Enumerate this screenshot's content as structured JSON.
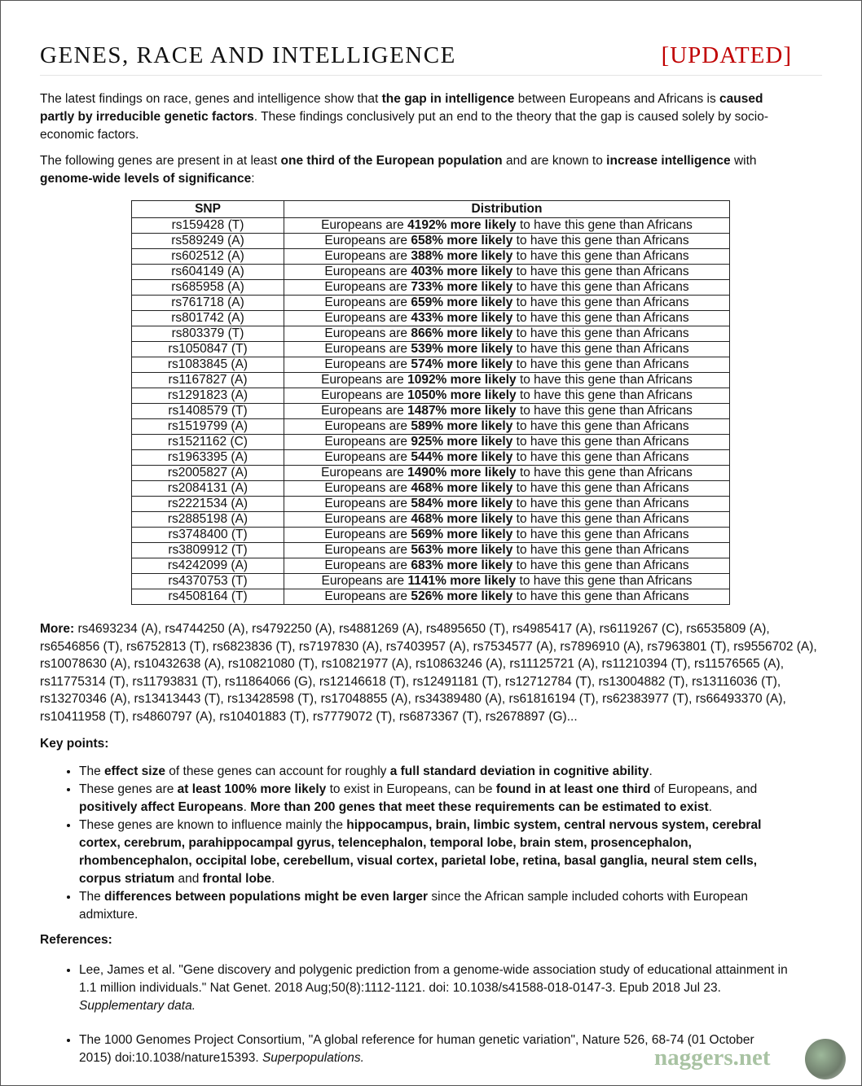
{
  "header": {
    "title": "GENES, RACE AND INTELLIGENCE",
    "tag": "[UPDATED]"
  },
  "intro": [
    {
      "t": "The latest findings on race, genes and intelligence show that "
    },
    {
      "t": "the gap in intelligence",
      "b": true
    },
    {
      "t": " between Europeans and Africans is "
    },
    {
      "t": "caused partly by irreducible genetic factors",
      "b": true
    },
    {
      "t": ". These findings conclusively put an end to the theory that the gap is caused solely by socio-economic factors."
    }
  ],
  "intro2": [
    {
      "t": "The following genes are present in at least "
    },
    {
      "t": "one third of the European population",
      "b": true
    },
    {
      "t": " and are known to "
    },
    {
      "t": "increase intelligence",
      "b": true
    },
    {
      "t": " with "
    },
    {
      "t": "genome-wide levels of significance",
      "b": true
    },
    {
      "t": ":"
    }
  ],
  "table": {
    "headers": [
      "SNP",
      "Distribution"
    ],
    "prefix": "Europeans are ",
    "suffix": " to have this gene than Africans",
    "more_likely": " more likely",
    "rows": [
      {
        "snp": "rs159428 (T)",
        "pct": "4192%"
      },
      {
        "snp": "rs589249 (A)",
        "pct": "658%"
      },
      {
        "snp": "rs602512 (A)",
        "pct": "388%"
      },
      {
        "snp": "rs604149 (A)",
        "pct": "403%"
      },
      {
        "snp": "rs685958 (A)",
        "pct": "733%"
      },
      {
        "snp": "rs761718 (A)",
        "pct": "659%"
      },
      {
        "snp": "rs801742 (A)",
        "pct": "433%"
      },
      {
        "snp": "rs803379 (T)",
        "pct": "866%"
      },
      {
        "snp": "rs1050847 (T)",
        "pct": "539%"
      },
      {
        "snp": "rs1083845 (A)",
        "pct": "574%"
      },
      {
        "snp": "rs1167827 (A)",
        "pct": "1092%"
      },
      {
        "snp": "rs1291823 (A)",
        "pct": "1050%"
      },
      {
        "snp": "rs1408579 (T)",
        "pct": "1487%"
      },
      {
        "snp": "rs1519799 (A)",
        "pct": "589%"
      },
      {
        "snp": "rs1521162 (C)",
        "pct": "925%"
      },
      {
        "snp": "rs1963395 (A)",
        "pct": "544%"
      },
      {
        "snp": "rs2005827 (A)",
        "pct": "1490%"
      },
      {
        "snp": "rs2084131 (A)",
        "pct": "468%"
      },
      {
        "snp": "rs2221534 (A)",
        "pct": "584%"
      },
      {
        "snp": "rs2885198 (A)",
        "pct": "468%"
      },
      {
        "snp": "rs3748400 (T)",
        "pct": "569%"
      },
      {
        "snp": "rs3809912 (T)",
        "pct": "563%"
      },
      {
        "snp": "rs4242099 (A)",
        "pct": "683%"
      },
      {
        "snp": "rs4370753 (T)",
        "pct": "1141%"
      },
      {
        "snp": "rs4508164 (T)",
        "pct": "526%"
      }
    ]
  },
  "more": {
    "label": "More:",
    "text": " rs4693234 (A), rs4744250 (A), rs4792250 (A), rs4881269 (A), rs4895650 (T), rs4985417 (A), rs6119267 (C), rs6535809 (A), rs6546856 (T), rs6752813 (T), rs6823836 (T), rs7197830 (A), rs7403957 (A), rs7534577 (A), rs7896910 (A), rs7963801 (T), rs9556702 (A), rs10078630 (A), rs10432638 (A), rs10821080 (T), rs10821977 (A), rs10863246 (A), rs11125721 (A), rs11210394 (T), rs11576565 (A), rs11775314 (T), rs11793831 (T), rs11864066 (G), rs12146618 (T), rs12491181 (T), rs12712784 (T), rs13004882 (T), rs13116036 (T), rs13270346 (A), rs13413443 (T), rs13428598 (T), rs17048855 (A), rs34389480 (A), rs61816194 (T), rs62383977 (T), rs66493370 (A), rs10411958 (T), rs4860797 (A), rs10401883 (T), rs7779072 (T), rs6873367 (T), rs2678897 (G)..."
  },
  "key_points": {
    "heading": "Key points:",
    "items": [
      [
        {
          "t": "The "
        },
        {
          "t": "effect size",
          "b": true
        },
        {
          "t": " of these genes can account for roughly "
        },
        {
          "t": "a full standard deviation in cognitive ability",
          "b": true
        },
        {
          "t": "."
        }
      ],
      [
        {
          "t": "These genes are "
        },
        {
          "t": "at least 100% more likely",
          "b": true
        },
        {
          "t": " to exist in Europeans, can be "
        },
        {
          "t": "found in at least one third",
          "b": true
        },
        {
          "t": " of Europeans, and "
        },
        {
          "t": "positively affect Europeans",
          "b": true
        },
        {
          "t": ". "
        },
        {
          "t": "More than 200 genes that meet these requirements can be estimated to exist",
          "b": true
        },
        {
          "t": "."
        }
      ],
      [
        {
          "t": "These genes are known to influence mainly the "
        },
        {
          "t": "hippocampus, brain, limbic system, central nervous system, cerebral cortex, cerebrum, parahippocampal gyrus, telencephalon, temporal lobe, brain stem, prosencephalon, rhombencephalon, occipital lobe, cerebellum, visual cortex, parietal lobe, retina, basal ganglia, neural stem cells, corpus striatum",
          "b": true
        },
        {
          "t": " and "
        },
        {
          "t": "frontal lobe",
          "b": true
        },
        {
          "t": "."
        }
      ],
      [
        {
          "t": "The "
        },
        {
          "t": "differences between populations might be even larger",
          "b": true
        },
        {
          "t": " since the African sample included cohorts with European admixture."
        }
      ]
    ]
  },
  "references": {
    "heading": "References:",
    "items": [
      [
        {
          "t": "Lee, James et al. \"Gene discovery and polygenic prediction from a genome-wide association study of educational attainment in 1.1 million individuals.\" Nat Genet. 2018 Aug;50(8):1112-1121. doi: 10.1038/s41588-018-0147-3. Epub 2018 Jul 23. "
        },
        {
          "t": "Supplementary data.",
          "i": true
        }
      ],
      [
        {
          "t": "The 1000 Genomes Project Consortium, \"A global reference for human genetic variation\", Nature 526, 68-74 (01 October 2015) doi:10.1038/nature15393. "
        },
        {
          "t": "Superpopulations.",
          "i": true
        }
      ]
    ]
  },
  "watermark": {
    "text": "naggers.net"
  }
}
